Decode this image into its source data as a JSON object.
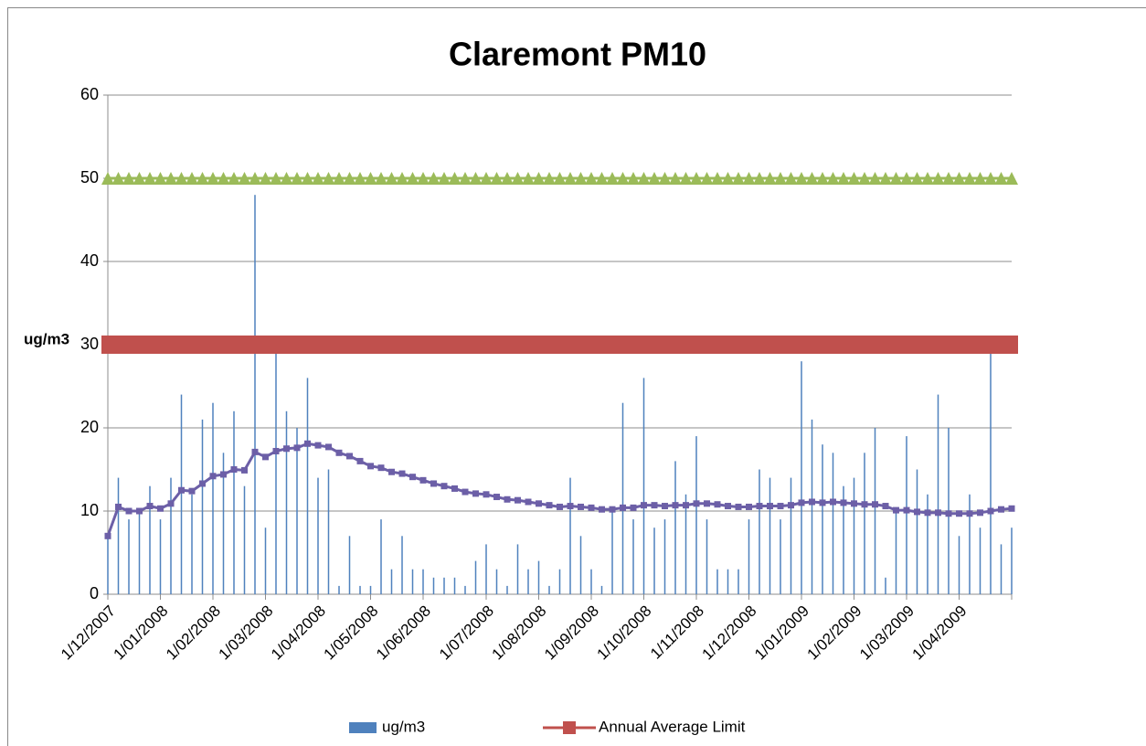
{
  "chart_data": {
    "type": "combo",
    "title": "Claremont PM10",
    "y_label": "ug/m3",
    "ylim": [
      0,
      60
    ],
    "yticks": [
      0,
      10,
      20,
      30,
      40,
      50,
      60
    ],
    "grid": true,
    "legend": "bottom",
    "categories": [
      "1/12/2007",
      null,
      null,
      null,
      null,
      "1/01/2008",
      null,
      null,
      null,
      null,
      "1/02/2008",
      null,
      null,
      null,
      null,
      "1/03/2008",
      null,
      null,
      null,
      null,
      "1/04/2008",
      null,
      null,
      null,
      null,
      "1/05/2008",
      null,
      null,
      null,
      null,
      "1/06/2008",
      null,
      null,
      null,
      null,
      null,
      "1/07/2008",
      null,
      null,
      null,
      null,
      "1/08/2008",
      null,
      null,
      null,
      null,
      "1/09/2008",
      null,
      null,
      null,
      null,
      "1/10/2008",
      null,
      null,
      null,
      null,
      "1/11/2008",
      null,
      null,
      null,
      null,
      "1/12/2008",
      null,
      null,
      null,
      null,
      "1/01/2009",
      null,
      null,
      null,
      null,
      "1/02/2009",
      null,
      null,
      null,
      null,
      "1/03/2009",
      null,
      null,
      null,
      null,
      "1/04/2009",
      null,
      null,
      null,
      null,
      null
    ],
    "series": [
      {
        "name": "ug/m3",
        "type": "bar",
        "color": "#4f81bd",
        "values": [
          7,
          14,
          9,
          10,
          13,
          9,
          14,
          24,
          12,
          21,
          23,
          17,
          22,
          13,
          48,
          8,
          29,
          22,
          20,
          26,
          14,
          15,
          1,
          7,
          1,
          1,
          9,
          3,
          7,
          3,
          3,
          2,
          2,
          2,
          1,
          4,
          6,
          3,
          1,
          6,
          3,
          4,
          1,
          3,
          14,
          7,
          3,
          1,
          10,
          23,
          9,
          26,
          8,
          9,
          16,
          12,
          19,
          9,
          3,
          3,
          3,
          9,
          15,
          14,
          9,
          14,
          28,
          21,
          18,
          17,
          13,
          14,
          17,
          20,
          2,
          10,
          19,
          15,
          12,
          24,
          20,
          7,
          12,
          8,
          29,
          6,
          8
        ]
      },
      {
        "type": "line",
        "color": "#6c5fa7",
        "marker": "square",
        "values": [
          7,
          10.5,
          10,
          10,
          10.6,
          10.3,
          10.9,
          12.5,
          12.4,
          13.3,
          14.2,
          14.4,
          15,
          14.9,
          17.1,
          16.5,
          17.2,
          17.5,
          17.6,
          18.1,
          17.9,
          17.7,
          17,
          16.6,
          16,
          15.4,
          15.2,
          14.7,
          14.5,
          14.1,
          13.7,
          13.3,
          13,
          12.7,
          12.3,
          12.1,
          12,
          11.7,
          11.4,
          11.3,
          11.1,
          10.9,
          10.7,
          10.5,
          10.6,
          10.5,
          10.4,
          10.2,
          10.2,
          10.4,
          10.4,
          10.7,
          10.7,
          10.6,
          10.7,
          10.7,
          10.9,
          10.9,
          10.8,
          10.6,
          10.5,
          10.5,
          10.6,
          10.6,
          10.6,
          10.7,
          11,
          11.1,
          11,
          11.1,
          11,
          10.9,
          10.8,
          10.8,
          10.6,
          10.1,
          10.1,
          9.9,
          9.8,
          9.8,
          9.7,
          9.7,
          9.7,
          9.8,
          10,
          10.2,
          10.3
        ]
      },
      {
        "name": "Annual Average Limit",
        "type": "line",
        "color": "#c0504d",
        "marker": "bigsquare",
        "values": [
          30,
          30,
          30,
          30,
          30,
          30,
          30,
          30,
          30,
          30,
          30,
          30,
          30,
          30,
          30,
          30,
          30,
          30,
          30,
          30,
          30,
          30,
          30,
          30,
          30,
          30,
          30,
          30,
          30,
          30,
          30,
          30,
          30,
          30,
          30,
          30,
          30,
          30,
          30,
          30,
          30,
          30,
          30,
          30,
          30,
          30,
          30,
          30,
          30,
          30,
          30,
          30,
          30,
          30,
          30,
          30,
          30,
          30,
          30,
          30,
          30,
          30,
          30,
          30,
          30,
          30,
          30,
          30,
          30,
          30,
          30,
          30,
          30,
          30,
          30,
          30,
          30,
          30,
          30,
          30,
          30,
          30,
          30,
          30,
          30,
          30,
          30
        ]
      },
      {
        "type": "line",
        "color": "#9bbb59",
        "marker": "triangle",
        "values": [
          50,
          50,
          50,
          50,
          50,
          50,
          50,
          50,
          50,
          50,
          50,
          50,
          50,
          50,
          50,
          50,
          50,
          50,
          50,
          50,
          50,
          50,
          50,
          50,
          50,
          50,
          50,
          50,
          50,
          50,
          50,
          50,
          50,
          50,
          50,
          50,
          50,
          50,
          50,
          50,
          50,
          50,
          50,
          50,
          50,
          50,
          50,
          50,
          50,
          50,
          50,
          50,
          50,
          50,
          50,
          50,
          50,
          50,
          50,
          50,
          50,
          50,
          50,
          50,
          50,
          50,
          50,
          50,
          50,
          50,
          50,
          50,
          50,
          50,
          50,
          50,
          50,
          50,
          50,
          50,
          50,
          50,
          50,
          50,
          50,
          50,
          50
        ]
      }
    ]
  }
}
